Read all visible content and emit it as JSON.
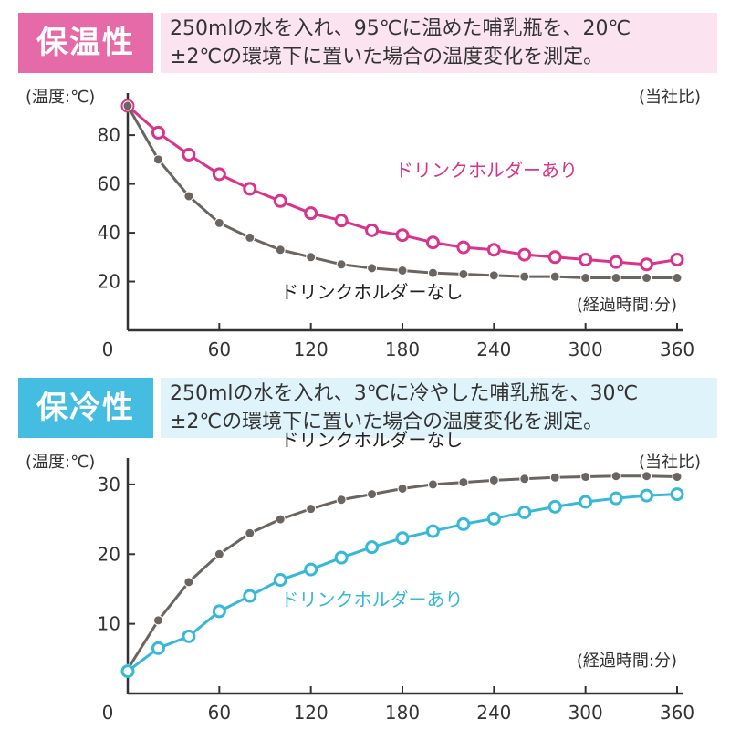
{
  "colors": {
    "warm": "#d9338a",
    "warm_bg": "#fbe3ef",
    "warm_badge": "#e76aa8",
    "cool": "#35b9d6",
    "cool_bg": "#dff3fa",
    "cool_badge": "#45bde0",
    "gray": "#6b6561"
  },
  "chart_data": [
    {
      "type": "line",
      "badge": "保温性",
      "description": [
        "250mlの水を入れ、95℃に温めた哺乳瓶を、20℃",
        "±2℃の環境下に置いた場合の温度変化を測定。"
      ],
      "ylabel": "(温度:℃)",
      "note": "(当社比)",
      "xlabel": "(経過時間:分)",
      "x": [
        0,
        20,
        40,
        60,
        80,
        100,
        120,
        140,
        160,
        180,
        200,
        220,
        240,
        260,
        280,
        300,
        320,
        340,
        360
      ],
      "xticks": [
        0,
        60,
        120,
        180,
        240,
        300,
        360
      ],
      "yticks": [
        20,
        40,
        60,
        80
      ],
      "xlim": [
        0,
        360
      ],
      "ylim": [
        0,
        95
      ],
      "series": [
        {
          "name": "ドリンクホルダーあり",
          "color": "#d9338a",
          "marker": "open",
          "values": [
            92,
            81,
            72,
            64,
            58,
            53,
            48,
            45,
            41,
            39,
            36,
            34,
            33,
            31,
            30,
            29,
            28,
            27,
            29
          ]
        },
        {
          "name": "ドリンクホルダーなし",
          "color": "#6b6561",
          "marker": "filled",
          "values": [
            92,
            70,
            55,
            44,
            38,
            33,
            30,
            27,
            25.5,
            24.5,
            23.5,
            23,
            22.5,
            22,
            22,
            21.5,
            21.5,
            21.5,
            21.5
          ]
        }
      ],
      "labels": [
        {
          "series": 0,
          "text": "ドリンクホルダーあり",
          "x": 235,
          "y": 63
        },
        {
          "series": 1,
          "text": "ドリンクホルダーなし",
          "x": 160,
          "y": 13
        }
      ]
    },
    {
      "type": "line",
      "badge": "保冷性",
      "description": [
        "250mlの水を入れ、3℃に冷やした哺乳瓶を、30℃",
        "±2℃の環境下に置いた場合の温度変化を測定。"
      ],
      "ylabel": "(温度:℃)",
      "note": "(当社比)",
      "xlabel": "(経過時間:分)",
      "x": [
        0,
        20,
        40,
        60,
        80,
        100,
        120,
        140,
        160,
        180,
        200,
        220,
        240,
        260,
        280,
        300,
        320,
        340,
        360
      ],
      "xticks": [
        0,
        60,
        120,
        180,
        240,
        300,
        360
      ],
      "yticks": [
        10,
        20,
        30
      ],
      "xlim": [
        0,
        360
      ],
      "ylim": [
        0,
        33
      ],
      "series": [
        {
          "name": "ドリンクホルダーなし",
          "color": "#6b6561",
          "marker": "filled",
          "values": [
            3.5,
            10.5,
            16,
            20,
            23,
            25,
            26.5,
            27.8,
            28.6,
            29.4,
            30,
            30.3,
            30.6,
            30.8,
            31,
            31.1,
            31.2,
            31.2,
            31.1
          ]
        },
        {
          "name": "ドリンクホルダーあり",
          "color": "#35b9d6",
          "marker": "open",
          "values": [
            3.2,
            6.5,
            8.2,
            11.8,
            14,
            16.3,
            17.8,
            19.5,
            21,
            22.3,
            23.3,
            24.3,
            25.1,
            26,
            26.8,
            27.5,
            28,
            28.4,
            28.6
          ]
        }
      ],
      "labels": [
        {
          "series": 0,
          "text": "ドリンクホルダーなし",
          "x": 160,
          "y": 35.5
        },
        {
          "series": 1,
          "text": "ドリンクホルダーあり",
          "x": 160,
          "y": 12.6
        }
      ]
    }
  ]
}
